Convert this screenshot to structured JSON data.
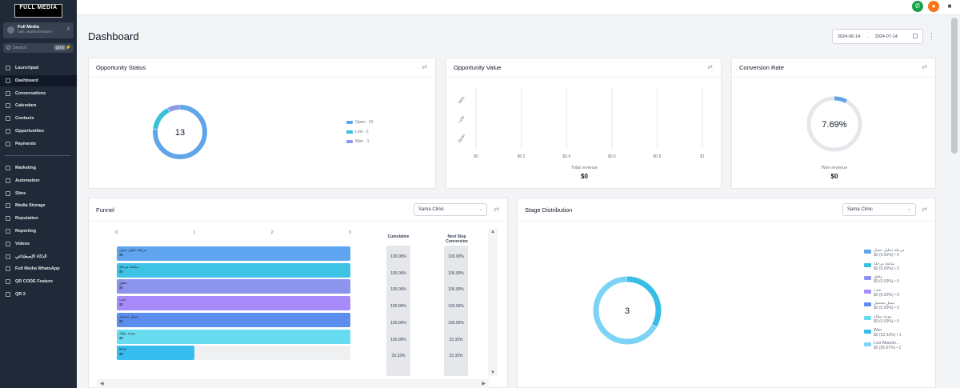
{
  "sidebar": {
    "logo": "FULL MEDIA",
    "account_name": "Full Media",
    "account_sub": "fatih, istanbul/Atakent",
    "search_placeholder": "Search",
    "search_kbd": "ctrl K",
    "items_top": [
      {
        "label": "Launchpad",
        "icon": "rocket-icon"
      },
      {
        "label": "Dashboard",
        "icon": "dashboard-icon",
        "active": true
      },
      {
        "label": "Conversations",
        "icon": "chat-icon"
      },
      {
        "label": "Calendars",
        "icon": "calendar-icon"
      },
      {
        "label": "Contacts",
        "icon": "contacts-icon"
      },
      {
        "label": "Opportunities",
        "icon": "opportunities-icon"
      },
      {
        "label": "Payments",
        "icon": "payments-icon"
      }
    ],
    "items_bottom": [
      {
        "label": "Marketing",
        "icon": "send-icon"
      },
      {
        "label": "Automation",
        "icon": "automation-icon"
      },
      {
        "label": "Sites",
        "icon": "sites-icon"
      },
      {
        "label": "Media Storage",
        "icon": "folder-icon"
      },
      {
        "label": "Reputation",
        "icon": "star-icon"
      },
      {
        "label": "Reporting",
        "icon": "chart-icon"
      },
      {
        "label": "Videos",
        "icon": "video-icon"
      },
      {
        "label": "الذكاء الإصطناعي",
        "icon": "cloud-icon"
      },
      {
        "label": "Full Media WhatsApp",
        "icon": "whatsapp-icon"
      },
      {
        "label": "QR CODE Feature",
        "icon": "grid-icon"
      },
      {
        "label": "QR 2",
        "icon": "grid-icon"
      }
    ]
  },
  "topbar": {
    "icons": [
      {
        "name": "phone-icon",
        "color": "#16a34a",
        "glyph": "✆"
      },
      {
        "name": "notification-icon",
        "color": "#f97316",
        "glyph": "●"
      },
      {
        "name": "chat-icon",
        "color": "#4b5563",
        "glyph": "■"
      }
    ]
  },
  "page": {
    "title": "Dashboard",
    "date_from": "2024-06-14",
    "date_arrow": "→",
    "date_to": "2024-07-14"
  },
  "opportunity_status": {
    "title": "Opportunity Status",
    "total": "13",
    "legend": [
      {
        "label": "Open - 10",
        "value": 10,
        "color": "#60a5e8"
      },
      {
        "label": "Lost - 2",
        "value": 2,
        "color": "#38c0d8"
      },
      {
        "label": "Won - 1",
        "value": 1,
        "color": "#8b9ae6"
      }
    ]
  },
  "opportunity_value": {
    "title": "Opportunity Value",
    "y_ticks": [
      "Won",
      "Lost",
      "Open"
    ],
    "x_ticks": [
      "$0",
      "$0.2",
      "$0.4",
      "$0.6",
      "$0.8",
      "$1"
    ],
    "total_label": "Total revenue",
    "total_value": "$0"
  },
  "conversion_rate": {
    "title": "Conversion Rate",
    "value_text": "7.69%",
    "value": 7.69,
    "won_label": "Won revenue",
    "won_value": "$0"
  },
  "funnel": {
    "title": "Funnel",
    "pipeline": "Sama Clinic",
    "axis_ticks": [
      "0",
      "1",
      "2",
      "3"
    ],
    "col_cumulative": "Cumulative",
    "col_next1": "Next Step",
    "col_next2": "Conversion",
    "max": 3,
    "stages": [
      {
        "name": "مرحلة تحليل عميل",
        "amount": "$0",
        "count": 3,
        "color": "#60a5f0",
        "cumulative": "100.00%",
        "next": "100.00%"
      },
      {
        "name": "متابعة مرحلة",
        "amount": "$0",
        "count": 3,
        "color": "#3ec3e6",
        "cumulative": "100.00%",
        "next": "100.00%"
      },
      {
        "name": "مغلق",
        "amount": "$0",
        "count": 3,
        "color": "#8c94ee",
        "cumulative": "100.00%",
        "next": "100.00%"
      },
      {
        "name": "تحت",
        "amount": "$0",
        "count": 3,
        "color": "#a78bfa",
        "cumulative": "100.00%",
        "next": "100.00%"
      },
      {
        "name": "عميل محتمل",
        "amount": "$0",
        "count": 3,
        "color": "#5b8def",
        "cumulative": "100.00%",
        "next": "100.00%"
      },
      {
        "name": "موعد مؤكد",
        "amount": "$0",
        "count": 3,
        "color": "#67dbef",
        "cumulative": "100.00%",
        "next": "33.33%"
      },
      {
        "name": "Won",
        "amount": "$0",
        "count": 1,
        "color": "#38bdf0",
        "cumulative": "33.33%",
        "next": "33.33%"
      }
    ]
  },
  "stage_distribution": {
    "title": "Stage Distribution",
    "pipeline": "Sama Clinic",
    "total": "3",
    "legend": [
      {
        "name": "مرحلة تحليل عميل",
        "detail": "$0 (0.00%) • 0",
        "value": 0,
        "color": "#60a5e8"
      },
      {
        "name": "متابعة مرحلة",
        "detail": "$0 (0.00%) • 0",
        "value": 0,
        "color": "#38c0d8"
      },
      {
        "name": "مغلق",
        "detail": "$0 (0.00%) • 0",
        "value": 0,
        "color": "#8c94ee"
      },
      {
        "name": "تحت",
        "detail": "$0 (0.00%) • 0",
        "value": 0,
        "color": "#a78bfa"
      },
      {
        "name": "عميل محتمل",
        "detail": "$0 (0.00%) • 0",
        "value": 0,
        "color": "#5b8def"
      },
      {
        "name": "موعد مؤكد",
        "detail": "$0 (0.00%) • 0",
        "value": 0,
        "color": "#67dbef"
      },
      {
        "name": "Won",
        "detail": "$0 (33.33%) • 1",
        "value": 1,
        "color": "#38bde6"
      },
      {
        "name": "Lost Abando...",
        "detail": "$0 (66.67%) • 2",
        "value": 2,
        "color": "#7dd3f5"
      }
    ]
  }
}
